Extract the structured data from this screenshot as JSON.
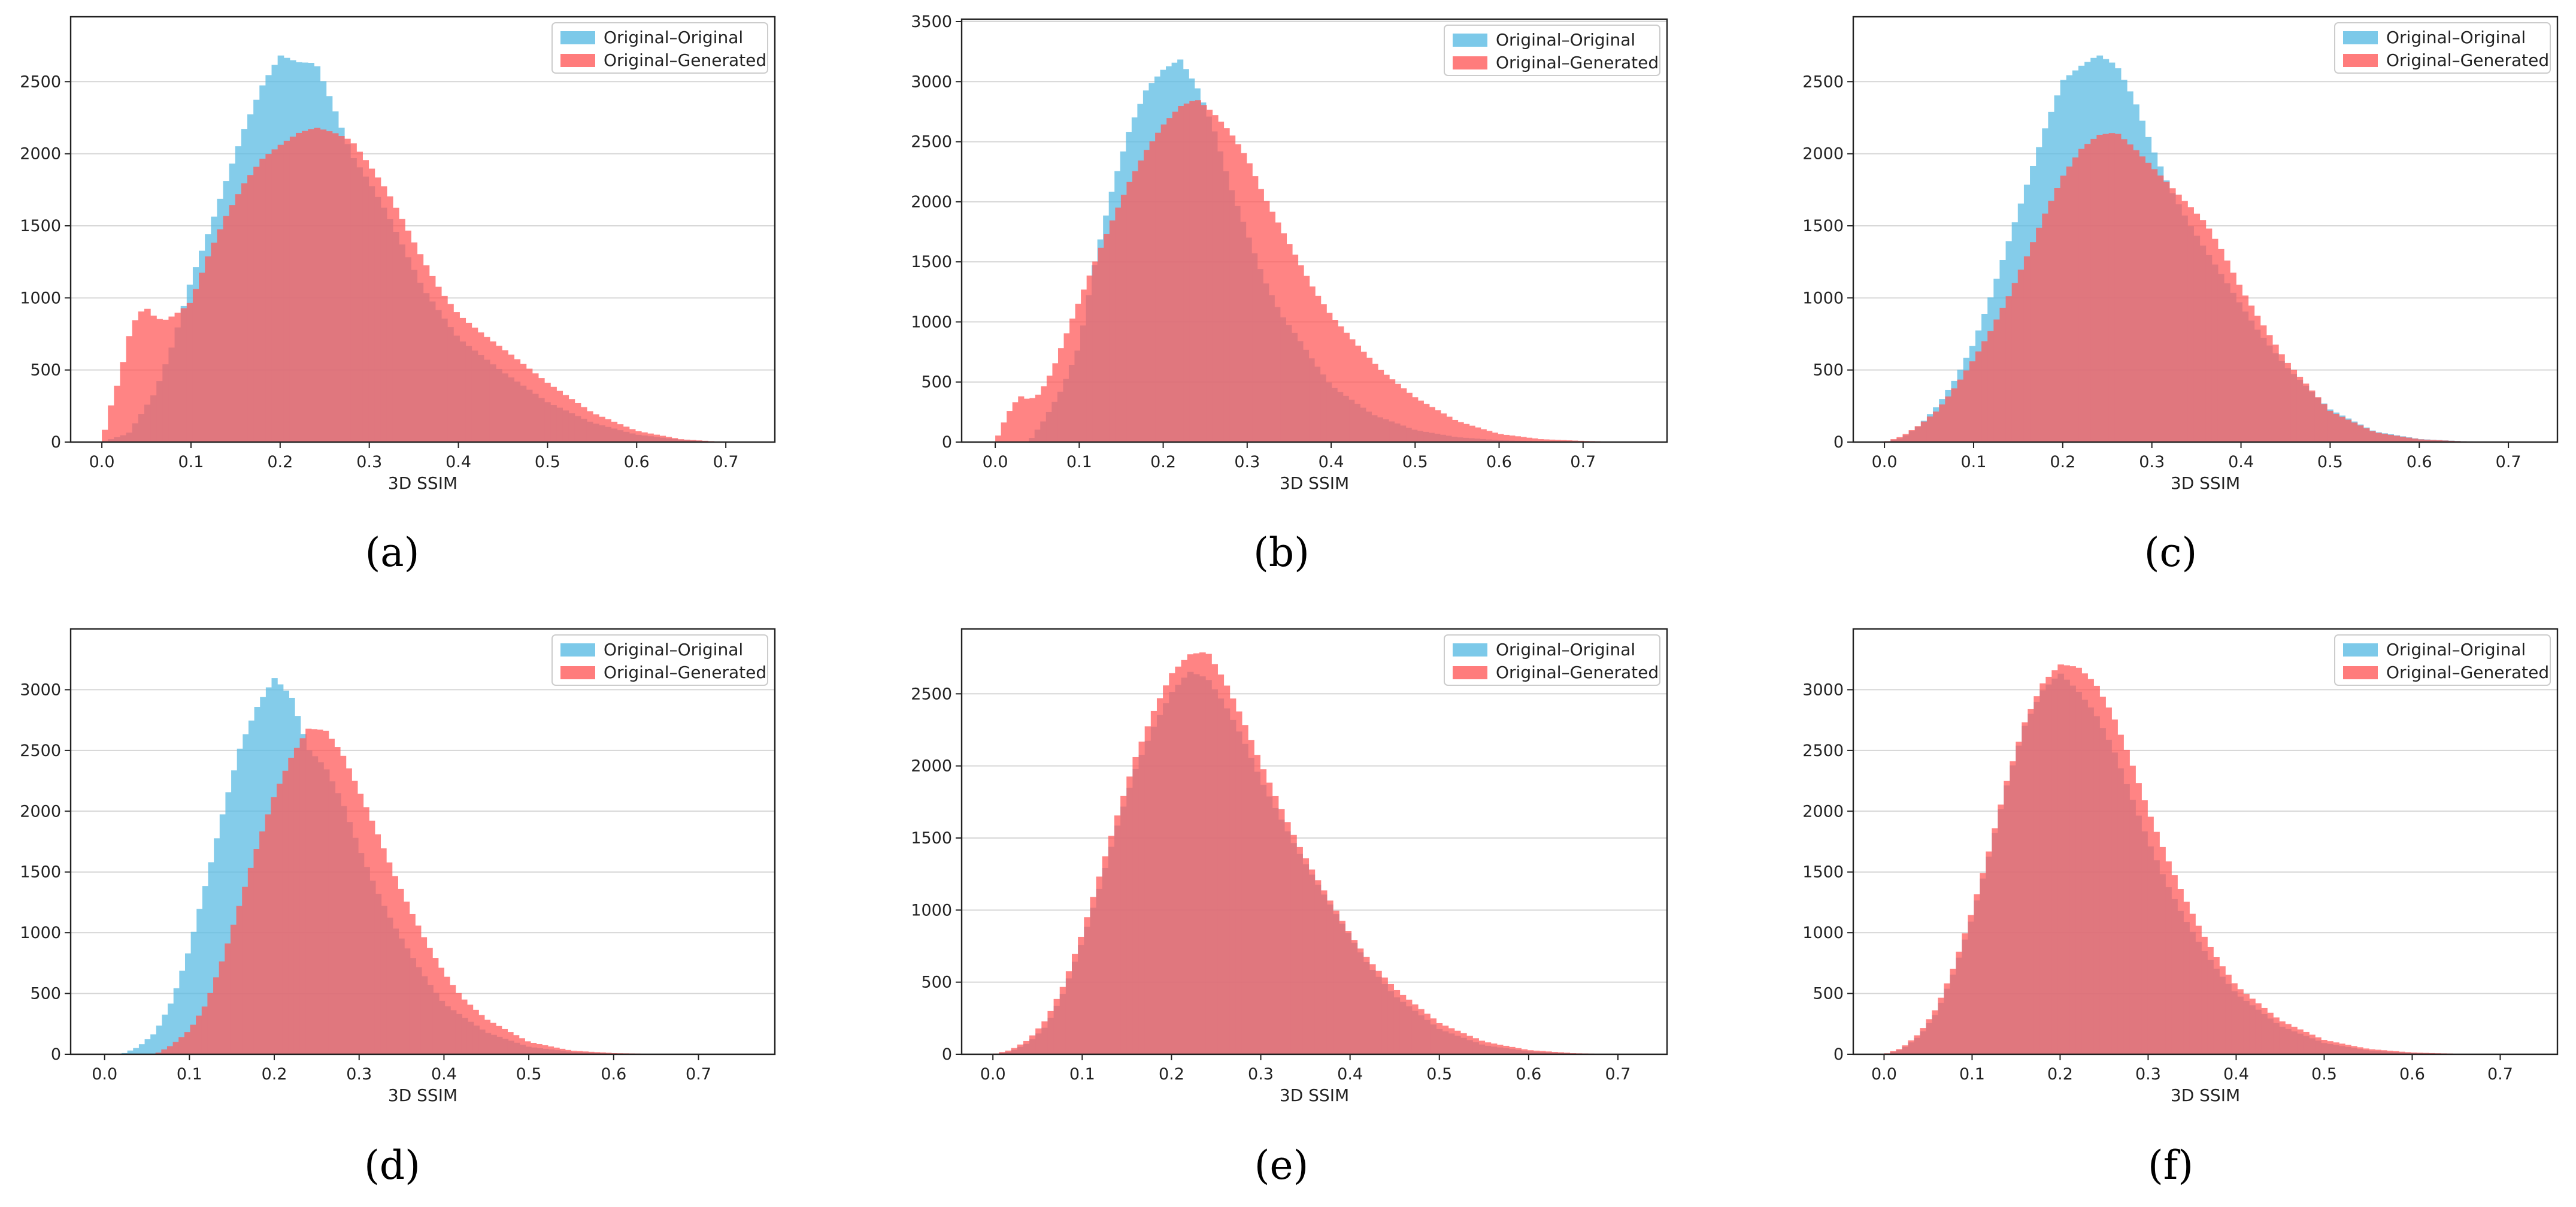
{
  "figure": {
    "colors": {
      "original_original": "#5BBCE4",
      "original_generated": "#FF5B5B"
    },
    "legend_position": "top-right"
  },
  "chart_data": [
    {
      "panel": "(a)",
      "type": "histogram",
      "xlabel": "3D SSIM",
      "ylabel": "",
      "xlim": [
        -0.035,
        0.755
      ],
      "ylim": [
        0,
        2950
      ],
      "xticks": [
        "0.0",
        "0.1",
        "0.2",
        "0.3",
        "0.4",
        "0.5",
        "0.6",
        "0.7"
      ],
      "yticks": [
        "0",
        "500",
        "1000",
        "1500",
        "2000",
        "2500"
      ],
      "grid": "y",
      "series": [
        {
          "name": "Original–Original",
          "color": "#5BBCE4",
          "x": [
            0.0,
            0.03,
            0.06,
            0.08,
            0.1,
            0.12,
            0.14,
            0.16,
            0.18,
            0.2,
            0.22,
            0.24,
            0.26,
            0.28,
            0.3,
            0.32,
            0.34,
            0.36,
            0.38,
            0.4,
            0.45,
            0.5,
            0.55,
            0.6,
            0.65,
            0.7
          ],
          "y": [
            0,
            60,
            350,
            700,
            1150,
            1500,
            1880,
            2250,
            2560,
            2780,
            2730,
            2720,
            2400,
            2050,
            1850,
            1620,
            1350,
            1080,
            900,
            720,
            480,
            270,
            130,
            50,
            15,
            0
          ]
        },
        {
          "name": "Original–Generated",
          "color": "#FF5B5B",
          "x": [
            0.0,
            0.01,
            0.02,
            0.03,
            0.04,
            0.05,
            0.06,
            0.07,
            0.08,
            0.09,
            0.1,
            0.12,
            0.14,
            0.16,
            0.18,
            0.2,
            0.22,
            0.24,
            0.26,
            0.28,
            0.3,
            0.32,
            0.34,
            0.36,
            0.38,
            0.4,
            0.43,
            0.46,
            0.5,
            0.55,
            0.6,
            0.65,
            0.7
          ],
          "y": [
            0,
            250,
            450,
            720,
            880,
            920,
            850,
            830,
            860,
            900,
            950,
            1270,
            1530,
            1740,
            1900,
            1990,
            2070,
            2110,
            2080,
            2030,
            1870,
            1700,
            1480,
            1250,
            1040,
            880,
            740,
            610,
            420,
            210,
            80,
            20,
            0
          ]
        }
      ]
    },
    {
      "panel": "(b)",
      "type": "histogram",
      "xlabel": "3D SSIM",
      "ylabel": "",
      "xlim": [
        -0.04,
        0.8
      ],
      "ylim": [
        0,
        3520
      ],
      "xticks": [
        "0.0",
        "0.1",
        "0.2",
        "0.3",
        "0.4",
        "0.5",
        "0.6",
        "0.7"
      ],
      "yticks": [
        "0",
        "500",
        "1000",
        "1500",
        "2000",
        "2500",
        "3000",
        "3500"
      ],
      "grid": "y",
      "series": [
        {
          "name": "Original–Original",
          "color": "#5BBCE4",
          "x": [
            0.04,
            0.06,
            0.08,
            0.1,
            0.12,
            0.14,
            0.16,
            0.18,
            0.2,
            0.22,
            0.24,
            0.26,
            0.28,
            0.3,
            0.32,
            0.34,
            0.36,
            0.38,
            0.4,
            0.45,
            0.5,
            0.55,
            0.6,
            0.65,
            0.7
          ],
          "y": [
            0,
            200,
            450,
            800,
            1550,
            2150,
            2650,
            3000,
            3180,
            3280,
            3050,
            2700,
            2200,
            1800,
            1400,
            1100,
            900,
            680,
            480,
            230,
            100,
            40,
            15,
            5,
            0
          ]
        },
        {
          "name": "Original–Generated",
          "color": "#FF5B5B",
          "x": [
            0.0,
            0.01,
            0.02,
            0.03,
            0.04,
            0.05,
            0.06,
            0.07,
            0.08,
            0.1,
            0.12,
            0.14,
            0.16,
            0.18,
            0.2,
            0.22,
            0.24,
            0.26,
            0.28,
            0.3,
            0.32,
            0.34,
            0.36,
            0.38,
            0.4,
            0.43,
            0.46,
            0.5,
            0.55,
            0.6,
            0.65,
            0.7,
            0.75
          ],
          "y": [
            0,
            160,
            300,
            380,
            350,
            380,
            480,
            620,
            800,
            1150,
            1480,
            1800,
            2100,
            2350,
            2550,
            2700,
            2760,
            2650,
            2500,
            2300,
            2000,
            1750,
            1500,
            1250,
            1050,
            820,
            600,
            380,
            180,
            70,
            25,
            10,
            0
          ]
        }
      ]
    },
    {
      "panel": "(c)",
      "type": "histogram",
      "xlabel": "3D SSIM",
      "ylabel": "",
      "xlim": [
        -0.035,
        0.755
      ],
      "ylim": [
        0,
        2950
      ],
      "xticks": [
        "0.0",
        "0.1",
        "0.2",
        "0.3",
        "0.4",
        "0.5",
        "0.6",
        "0.7"
      ],
      "yticks": [
        "0",
        "500",
        "1000",
        "1500",
        "2000",
        "2500"
      ],
      "grid": "y",
      "series": [
        {
          "name": "Original–Original",
          "color": "#5BBCE4",
          "x": [
            0.0,
            0.02,
            0.04,
            0.06,
            0.08,
            0.1,
            0.12,
            0.14,
            0.16,
            0.18,
            0.2,
            0.22,
            0.24,
            0.26,
            0.28,
            0.3,
            0.32,
            0.34,
            0.36,
            0.38,
            0.4,
            0.42,
            0.45,
            0.5,
            0.55,
            0.6,
            0.65,
            0.7
          ],
          "y": [
            0,
            30,
            120,
            260,
            450,
            700,
            1050,
            1450,
            1850,
            2250,
            2600,
            2700,
            2780,
            2700,
            2450,
            2100,
            1800,
            1560,
            1350,
            1150,
            950,
            760,
            520,
            220,
            70,
            20,
            5,
            0
          ]
        },
        {
          "name": "Original–Generated",
          "color": "#FF5B5B",
          "x": [
            0.0,
            0.02,
            0.04,
            0.06,
            0.08,
            0.1,
            0.12,
            0.14,
            0.16,
            0.18,
            0.2,
            0.22,
            0.24,
            0.26,
            0.28,
            0.3,
            0.32,
            0.34,
            0.36,
            0.38,
            0.4,
            0.42,
            0.45,
            0.5,
            0.55,
            0.6,
            0.65,
            0.7
          ],
          "y": [
            0,
            40,
            120,
            220,
            380,
            560,
            760,
            990,
            1250,
            1530,
            1780,
            1960,
            2060,
            2080,
            1980,
            1860,
            1740,
            1620,
            1500,
            1300,
            1060,
            860,
            570,
            220,
            70,
            20,
            5,
            0
          ]
        }
      ]
    },
    {
      "panel": "(d)",
      "type": "histogram",
      "xlabel": "3D SSIM",
      "ylabel": "",
      "xlim": [
        -0.04,
        0.79
      ],
      "ylim": [
        0,
        3500
      ],
      "xticks": [
        "0.0",
        "0.1",
        "0.2",
        "0.3",
        "0.4",
        "0.5",
        "0.6",
        "0.7"
      ],
      "yticks": [
        "0",
        "500",
        "1000",
        "1500",
        "2000",
        "2500",
        "3000"
      ],
      "grid": "y",
      "series": [
        {
          "name": "Original–Original",
          "color": "#5BBCE4",
          "x": [
            0.02,
            0.04,
            0.06,
            0.08,
            0.1,
            0.12,
            0.14,
            0.16,
            0.18,
            0.2,
            0.22,
            0.24,
            0.26,
            0.28,
            0.3,
            0.32,
            0.34,
            0.36,
            0.38,
            0.4,
            0.45,
            0.5,
            0.55,
            0.6,
            0.65
          ],
          "y": [
            0,
            60,
            180,
            450,
            880,
            1450,
            2050,
            2600,
            2950,
            3200,
            3050,
            2600,
            2450,
            2150,
            1750,
            1400,
            1100,
            850,
            620,
            420,
            180,
            60,
            20,
            5,
            0
          ]
        },
        {
          "name": "Original–Generated",
          "color": "#FF5B5B",
          "x": [
            0.06,
            0.08,
            0.1,
            0.12,
            0.14,
            0.16,
            0.18,
            0.2,
            0.22,
            0.24,
            0.26,
            0.28,
            0.3,
            0.32,
            0.34,
            0.36,
            0.38,
            0.4,
            0.42,
            0.45,
            0.5,
            0.55,
            0.6,
            0.65,
            0.7
          ],
          "y": [
            0,
            80,
            200,
            420,
            800,
            1250,
            1700,
            2100,
            2400,
            2620,
            2600,
            2400,
            2100,
            1780,
            1450,
            1150,
            880,
            650,
            460,
            280,
            100,
            30,
            10,
            3,
            0
          ]
        }
      ]
    },
    {
      "panel": "(e)",
      "type": "histogram",
      "xlabel": "3D SSIM",
      "ylabel": "",
      "xlim": [
        -0.035,
        0.755
      ],
      "ylim": [
        0,
        2950
      ],
      "xticks": [
        "0.0",
        "0.1",
        "0.2",
        "0.3",
        "0.4",
        "0.5",
        "0.6",
        "0.7"
      ],
      "yticks": [
        "0",
        "500",
        "1000",
        "1500",
        "2000",
        "2500"
      ],
      "grid": "y",
      "series": [
        {
          "name": "Original–Original",
          "color": "#5BBCE4",
          "x": [
            0.0,
            0.02,
            0.04,
            0.06,
            0.08,
            0.1,
            0.12,
            0.14,
            0.16,
            0.18,
            0.2,
            0.22,
            0.24,
            0.26,
            0.28,
            0.3,
            0.32,
            0.34,
            0.36,
            0.38,
            0.4,
            0.42,
            0.45,
            0.5,
            0.55,
            0.6,
            0.65,
            0.7
          ],
          "y": [
            0,
            20,
            80,
            200,
            450,
            800,
            1200,
            1650,
            2050,
            2350,
            2600,
            2750,
            2700,
            2500,
            2250,
            1950,
            1700,
            1450,
            1230,
            1020,
            820,
            620,
            400,
            170,
            60,
            20,
            5,
            0
          ]
        },
        {
          "name": "Original–Generated",
          "color": "#FF5B5B",
          "x": [
            0.0,
            0.02,
            0.04,
            0.06,
            0.08,
            0.1,
            0.12,
            0.14,
            0.16,
            0.18,
            0.2,
            0.22,
            0.24,
            0.26,
            0.28,
            0.3,
            0.32,
            0.34,
            0.36,
            0.38,
            0.4,
            0.42,
            0.45,
            0.5,
            0.55,
            0.6,
            0.65,
            0.7
          ],
          "y": [
            0,
            30,
            100,
            240,
            480,
            820,
            1220,
            1620,
            2000,
            2300,
            2550,
            2680,
            2700,
            2500,
            2250,
            1960,
            1700,
            1450,
            1230,
            1030,
            830,
            660,
            460,
            220,
            90,
            30,
            8,
            0
          ]
        }
      ]
    },
    {
      "panel": "(f)",
      "type": "histogram",
      "xlabel": "3D SSIM",
      "ylabel": "",
      "xlim": [
        -0.035,
        0.765
      ],
      "ylim": [
        0,
        3500
      ],
      "xticks": [
        "0.0",
        "0.1",
        "0.2",
        "0.3",
        "0.4",
        "0.5",
        "0.6",
        "0.7"
      ],
      "yticks": [
        "0",
        "500",
        "1000",
        "1500",
        "2000",
        "2500",
        "3000"
      ],
      "grid": "y",
      "series": [
        {
          "name": "Original–Original",
          "color": "#5BBCE4",
          "x": [
            0.0,
            0.02,
            0.04,
            0.06,
            0.08,
            0.1,
            0.12,
            0.14,
            0.16,
            0.18,
            0.2,
            0.22,
            0.24,
            0.26,
            0.28,
            0.3,
            0.32,
            0.34,
            0.36,
            0.38,
            0.4,
            0.45,
            0.5,
            0.55,
            0.6,
            0.65,
            0.7
          ],
          "y": [
            0,
            40,
            150,
            350,
            700,
            1150,
            1700,
            2300,
            2800,
            3100,
            3250,
            3100,
            2900,
            2600,
            2200,
            1800,
            1450,
            1150,
            900,
            680,
            500,
            230,
            90,
            30,
            10,
            3,
            0
          ]
        },
        {
          "name": "Original–Generated",
          "color": "#FF5B5B",
          "x": [
            0.0,
            0.02,
            0.04,
            0.06,
            0.08,
            0.1,
            0.12,
            0.14,
            0.16,
            0.18,
            0.2,
            0.22,
            0.24,
            0.26,
            0.28,
            0.3,
            0.32,
            0.34,
            0.36,
            0.38,
            0.4,
            0.45,
            0.5,
            0.55,
            0.6,
            0.65,
            0.7
          ],
          "y": [
            0,
            50,
            170,
            380,
            720,
            1150,
            1650,
            2200,
            2650,
            2950,
            3100,
            3080,
            2950,
            2700,
            2350,
            1950,
            1600,
            1280,
            1000,
            760,
            560,
            280,
            120,
            45,
            15,
            5,
            0
          ]
        }
      ]
    }
  ]
}
